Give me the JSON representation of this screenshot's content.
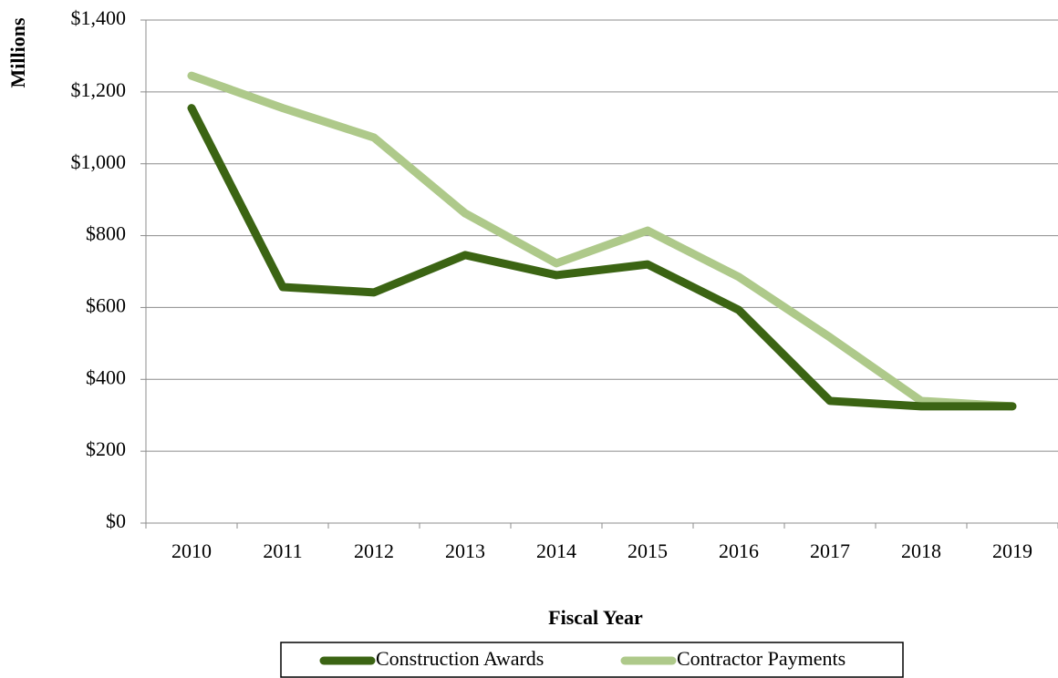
{
  "chart_data": {
    "type": "line",
    "x_label": "Fiscal Year",
    "y_label": "Millions",
    "categories": [
      "2010",
      "2011",
      "2012",
      "2013",
      "2014",
      "2015",
      "2016",
      "2017",
      "2018",
      "2019"
    ],
    "series": [
      {
        "name": "Construction Awards",
        "color": "#3b6413",
        "values": [
          1155,
          657,
          642,
          746,
          690,
          720,
          593,
          340,
          325,
          325
        ]
      },
      {
        "name": "Contractor Payments",
        "color": "#aec98a",
        "values": [
          1245,
          1155,
          1073,
          862,
          723,
          814,
          685,
          517,
          340,
          325
        ]
      }
    ],
    "ylim": [
      0,
      1400
    ],
    "yticks": [
      {
        "value": 0,
        "label": "$0"
      },
      {
        "value": 200,
        "label": "$200"
      },
      {
        "value": 400,
        "label": "$400"
      },
      {
        "value": 600,
        "label": "$600"
      },
      {
        "value": 800,
        "label": "$800"
      },
      {
        "value": 1000,
        "label": "$1,000"
      },
      {
        "value": 1200,
        "label": "$1,200"
      },
      {
        "value": 1400,
        "label": "$1,400"
      }
    ],
    "grid": true,
    "legend": "bottom"
  }
}
